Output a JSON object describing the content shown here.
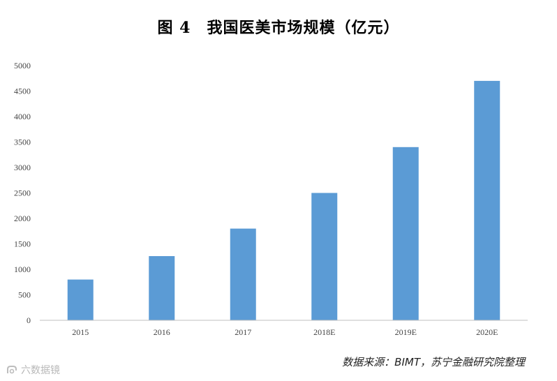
{
  "chart_data": {
    "type": "bar",
    "title": "图 4　我国医美市场规模（亿元）",
    "categories": [
      "2015",
      "2016",
      "2017",
      "2018E",
      "2019E",
      "2020E"
    ],
    "values": [
      800,
      1260,
      1800,
      2500,
      3400,
      4700
    ],
    "yticks": [
      "0",
      "500",
      "1000",
      "1500",
      "2000",
      "2500",
      "3000",
      "3500",
      "4000",
      "4500",
      "5000"
    ],
    "ylim": [
      0,
      5000
    ],
    "bar_color": "#5b9bd5",
    "grid": false,
    "legend": "none"
  },
  "source_note": "数据来源：BIMT，苏宁金融研究院整理",
  "watermark": {
    "text": "六数据镜",
    "icon": "watermark-logo-icon"
  }
}
